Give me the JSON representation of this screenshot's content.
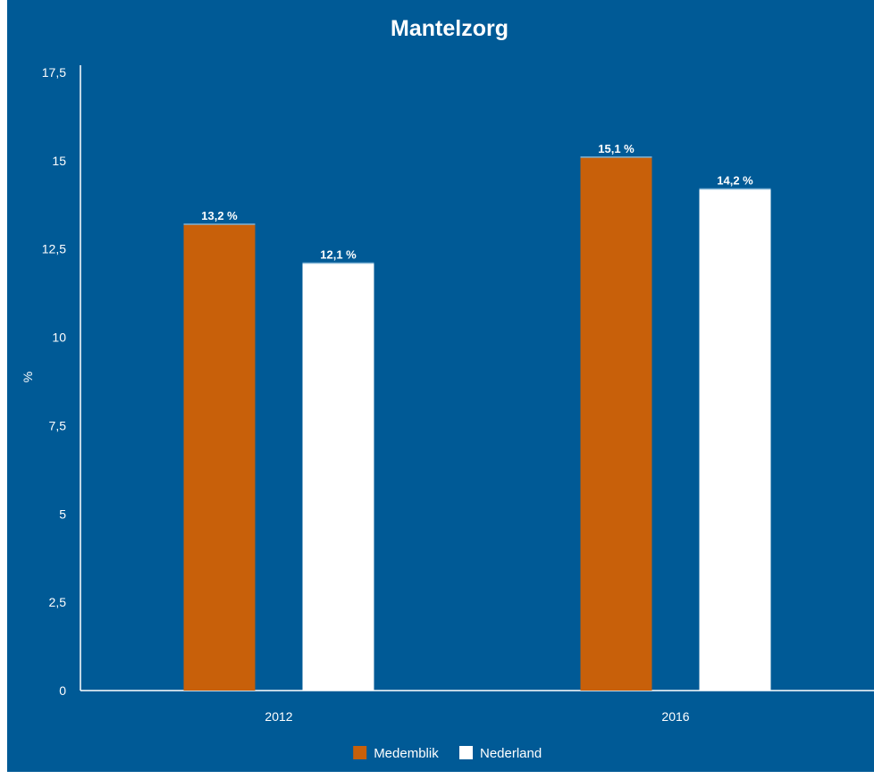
{
  "chart_data": {
    "type": "bar",
    "title": "Mantelzorg",
    "xlabel": "",
    "ylabel": "%",
    "ylim": [
      0,
      17.5
    ],
    "yticks": [
      0,
      2.5,
      5,
      7.5,
      10,
      12.5,
      15,
      17.5
    ],
    "ytick_labels": [
      "0",
      "2,5",
      "5",
      "7,5",
      "10",
      "12,5",
      "15",
      "17,5"
    ],
    "categories": [
      "2012",
      "2016"
    ],
    "series": [
      {
        "name": "Medemblik",
        "color": "#c8600a",
        "values": [
          13.2,
          15.1
        ],
        "labels": [
          "13,2 %",
          "15,1 %"
        ]
      },
      {
        "name": "Nederland",
        "color": "#ffffff",
        "values": [
          12.1,
          14.2
        ],
        "labels": [
          "12,1 %",
          "14,2 %"
        ]
      }
    ],
    "grid": false,
    "legend_position": "bottom-center",
    "background_color": "#005a96"
  }
}
